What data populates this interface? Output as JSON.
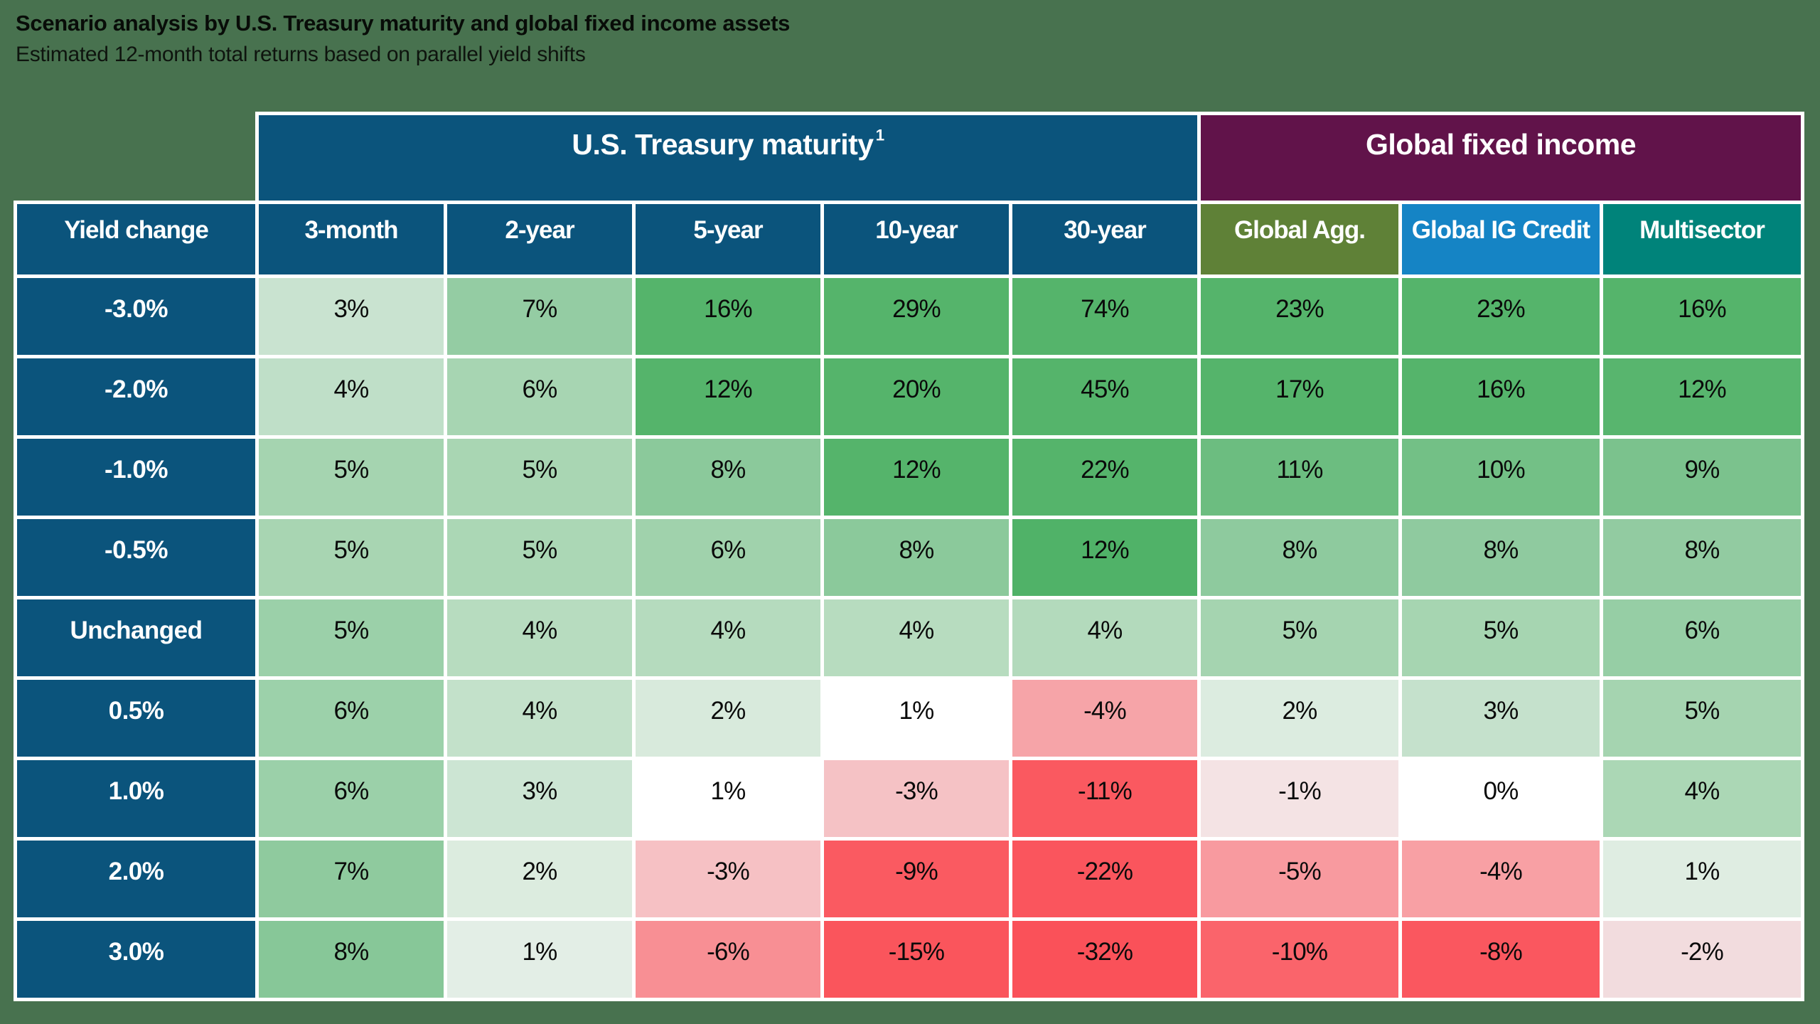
{
  "page": {
    "background_color": "#48724F",
    "title": "Scenario analysis by U.S. Treasury maturity and global fixed income assets",
    "subtitle": "Estimated 12-month total returns based on parallel yield shifts"
  },
  "table": {
    "border_color": "#FFFFFF",
    "row_label_color": "#0B547C",
    "group_headers": [
      {
        "label": "U.S. Treasury maturity",
        "superscript": "1",
        "color": "#0B547C",
        "span": 5
      },
      {
        "label": "Global fixed income",
        "superscript": "",
        "color": "#61134A",
        "span": 3
      }
    ],
    "columns": [
      {
        "label": "Yield change",
        "header_color": "#0B547C"
      },
      {
        "label": "3-month",
        "header_color": "#0B547C"
      },
      {
        "label": "2-year",
        "header_color": "#0B547C"
      },
      {
        "label": "5-year",
        "header_color": "#0B547C"
      },
      {
        "label": "10-year",
        "header_color": "#0B547C"
      },
      {
        "label": "30-year",
        "header_color": "#0B547C"
      },
      {
        "label": "Global Agg.",
        "header_color": "#5F8137"
      },
      {
        "label": "Global IG Credit",
        "header_color": "#1584C5"
      },
      {
        "label": "Multisector",
        "header_color": "#00837A"
      }
    ],
    "rows": [
      {
        "label": "-3.0%",
        "values": [
          "3%",
          "7%",
          "16%",
          "29%",
          "74%",
          "23%",
          "23%",
          "16%"
        ],
        "colors": [
          "#C9E3D0",
          "#94CCA3",
          "#55B46B",
          "#55B46B",
          "#55B46B",
          "#55B46B",
          "#55B46B",
          "#55B46B"
        ]
      },
      {
        "label": "-2.0%",
        "values": [
          "4%",
          "6%",
          "12%",
          "20%",
          "45%",
          "17%",
          "16%",
          "12%"
        ],
        "colors": [
          "#BFDFC8",
          "#A7D5B2",
          "#55B46B",
          "#55B46B",
          "#55B46B",
          "#55B46B",
          "#55B46B",
          "#58B56E"
        ]
      },
      {
        "label": "-1.0%",
        "values": [
          "5%",
          "5%",
          "8%",
          "12%",
          "22%",
          "11%",
          "10%",
          "9%"
        ],
        "colors": [
          "#A5D4B0",
          "#A9D6B3",
          "#8BC99B",
          "#55B46B",
          "#55B46B",
          "#6CBD80",
          "#73C086",
          "#7BC28D"
        ]
      },
      {
        "label": "-0.5%",
        "values": [
          "5%",
          "5%",
          "6%",
          "8%",
          "12%",
          "8%",
          "8%",
          "8%"
        ],
        "colors": [
          "#A8D5B2",
          "#ABD7B5",
          "#A0D2AC",
          "#8BC99B",
          "#50B268",
          "#8ECA9E",
          "#8FCA9F",
          "#92CBA1"
        ]
      },
      {
        "label": "Unchanged",
        "values": [
          "5%",
          "4%",
          "4%",
          "4%",
          "4%",
          "5%",
          "5%",
          "6%"
        ],
        "colors": [
          "#9BD0A9",
          "#B7DCBF",
          "#B5DBBE",
          "#B7DCBF",
          "#B3DABC",
          "#A5D4B0",
          "#A6D5B1",
          "#96CEA5"
        ]
      },
      {
        "label": "0.5%",
        "values": [
          "6%",
          "4%",
          "2%",
          "1%",
          "-4%",
          "2%",
          "3%",
          "5%"
        ],
        "colors": [
          "#9CD1AA",
          "#C3E1CA",
          "#D8EADC",
          "#FFFFFF",
          "#F6A4A8",
          "#DCECE0",
          "#C5E1CC",
          "#A5D4B0"
        ]
      },
      {
        "label": "1.0%",
        "values": [
          "6%",
          "3%",
          "1%",
          "-3%",
          "-11%",
          "-1%",
          "0%",
          "4%"
        ],
        "colors": [
          "#9BD0A9",
          "#CCE5D3",
          "#FFFFFF",
          "#F5C2C5",
          "#FA5960",
          "#F4E3E4",
          "#FFFFFF",
          "#ABD7B5"
        ]
      },
      {
        "label": "2.0%",
        "values": [
          "7%",
          "2%",
          "-3%",
          "-9%",
          "-22%",
          "-5%",
          "-4%",
          "1%"
        ],
        "colors": [
          "#8FCA9E",
          "#DCECDF",
          "#F6C1C4",
          "#FA5A61",
          "#FA555D",
          "#F89A9F",
          "#F8A0A4",
          "#DFEDE2"
        ]
      },
      {
        "label": "3.0%",
        "values": [
          "8%",
          "1%",
          "-6%",
          "-15%",
          "-32%",
          "-10%",
          "-8%",
          "-2%"
        ],
        "colors": [
          "#87C798",
          "#E3EEE6",
          "#F88F94",
          "#FA555C",
          "#FA5159",
          "#FA646B",
          "#FA575F",
          "#F2DCDE"
        ]
      }
    ]
  },
  "chart_data": {
    "type": "heatmap",
    "title": "Scenario analysis by U.S. Treasury maturity and global fixed income assets",
    "subtitle": "Estimated 12-month total returns based on parallel yield shifts",
    "rows_label": "Yield change",
    "row_categories": [
      "-3.0%",
      "-2.0%",
      "-1.0%",
      "-0.5%",
      "Unchanged",
      "0.5%",
      "1.0%",
      "2.0%",
      "3.0%"
    ],
    "column_groups": [
      {
        "label": "U.S. Treasury maturity",
        "footnote_marker": "1",
        "columns": [
          "3-month",
          "2-year",
          "5-year",
          "10-year",
          "30-year"
        ]
      },
      {
        "label": "Global fixed income",
        "columns": [
          "Global Agg.",
          "Global IG Credit",
          "Multisector"
        ]
      }
    ],
    "values_pct": [
      [
        3,
        7,
        16,
        29,
        74,
        23,
        23,
        16
      ],
      [
        4,
        6,
        12,
        20,
        45,
        17,
        16,
        12
      ],
      [
        5,
        5,
        8,
        12,
        22,
        11,
        10,
        9
      ],
      [
        5,
        5,
        6,
        8,
        12,
        8,
        8,
        8
      ],
      [
        5,
        4,
        4,
        4,
        4,
        5,
        5,
        6
      ],
      [
        6,
        4,
        2,
        1,
        -4,
        2,
        3,
        5
      ],
      [
        6,
        3,
        1,
        -3,
        -11,
        -1,
        0,
        4
      ],
      [
        7,
        2,
        -3,
        -9,
        -22,
        -5,
        -4,
        1
      ],
      [
        8,
        1,
        -6,
        -15,
        -32,
        -10,
        -8,
        -2
      ]
    ],
    "color_scale": {
      "positive_saturation_color": "#55B46B",
      "zero_color": "#FFFFFF",
      "negative_saturation_color": "#FA5159",
      "note": "green saturates near +12%, red saturates near -11%"
    },
    "legend_position": "none",
    "grid": "white cell borders"
  }
}
